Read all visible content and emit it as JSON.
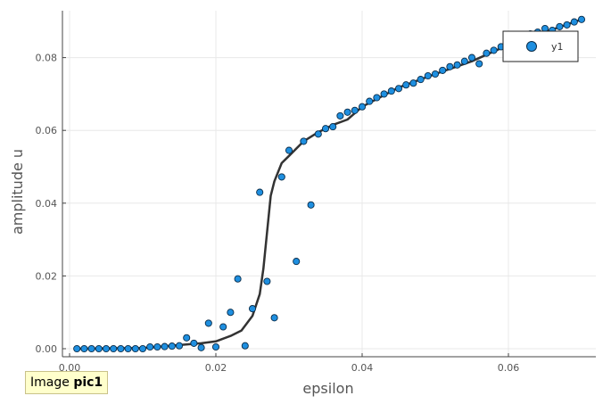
{
  "colors": {
    "marker_fill": "#1e8fe0",
    "marker_stroke": "#0b2d4a",
    "line": "#333333",
    "grid": "#e8e8e8",
    "axis": "#444444"
  },
  "chart_data": {
    "type": "scatter",
    "xlabel": "epsilon",
    "ylabel": "amplitude u",
    "xlim": [
      -0.001,
      0.0715
    ],
    "ylim": [
      -0.0025,
      0.093
    ],
    "xticks": [
      0.0,
      0.02,
      0.04,
      0.06
    ],
    "yticks": [
      0.0,
      0.02,
      0.04,
      0.06,
      0.08
    ],
    "xtick_labels": [
      "0.00",
      "0.02",
      "0.04",
      "0.06"
    ],
    "ytick_labels": [
      "0.00",
      "0.02",
      "0.04",
      "0.06",
      "0.08"
    ],
    "grid": true,
    "legend": {
      "position": "top-right",
      "entries": [
        "y1"
      ]
    },
    "series": [
      {
        "name": "y1",
        "kind": "scatter",
        "points": [
          [
            0.001,
            0.0
          ],
          [
            0.002,
            0.0
          ],
          [
            0.003,
            0.0
          ],
          [
            0.004,
            0.0
          ],
          [
            0.005,
            0.0
          ],
          [
            0.006,
            0.0
          ],
          [
            0.007,
            0.0
          ],
          [
            0.008,
            0.0
          ],
          [
            0.009,
            0.0
          ],
          [
            0.01,
            0.0
          ],
          [
            0.011,
            0.0005
          ],
          [
            0.012,
            0.0005
          ],
          [
            0.013,
            0.0006
          ],
          [
            0.014,
            0.0007
          ],
          [
            0.015,
            0.0008
          ],
          [
            0.016,
            0.003
          ],
          [
            0.017,
            0.0015
          ],
          [
            0.018,
            0.0003
          ],
          [
            0.019,
            0.007
          ],
          [
            0.02,
            0.0005
          ],
          [
            0.021,
            0.006
          ],
          [
            0.022,
            0.01
          ],
          [
            0.023,
            0.0192
          ],
          [
            0.024,
            0.0008
          ],
          [
            0.025,
            0.011
          ],
          [
            0.026,
            0.043
          ],
          [
            0.027,
            0.0185
          ],
          [
            0.028,
            0.0085
          ],
          [
            0.029,
            0.0472
          ],
          [
            0.03,
            0.0545
          ],
          [
            0.031,
            0.024
          ],
          [
            0.032,
            0.057
          ],
          [
            0.033,
            0.0395
          ],
          [
            0.034,
            0.059
          ],
          [
            0.035,
            0.0605
          ],
          [
            0.036,
            0.061
          ],
          [
            0.037,
            0.064
          ],
          [
            0.038,
            0.065
          ],
          [
            0.039,
            0.0655
          ],
          [
            0.04,
            0.0665
          ],
          [
            0.041,
            0.068
          ],
          [
            0.042,
            0.069
          ],
          [
            0.043,
            0.07
          ],
          [
            0.044,
            0.0708
          ],
          [
            0.045,
            0.0715
          ],
          [
            0.046,
            0.0725
          ],
          [
            0.047,
            0.073
          ],
          [
            0.048,
            0.074
          ],
          [
            0.049,
            0.075
          ],
          [
            0.05,
            0.0755
          ],
          [
            0.051,
            0.0765
          ],
          [
            0.052,
            0.0775
          ],
          [
            0.053,
            0.078
          ],
          [
            0.054,
            0.079
          ],
          [
            0.055,
            0.08
          ],
          [
            0.056,
            0.0783
          ],
          [
            0.057,
            0.0812
          ],
          [
            0.058,
            0.082
          ],
          [
            0.059,
            0.083
          ],
          [
            0.06,
            0.084
          ],
          [
            0.061,
            0.085
          ],
          [
            0.062,
            0.086
          ],
          [
            0.063,
            0.0865
          ],
          [
            0.064,
            0.087
          ],
          [
            0.065,
            0.088
          ],
          [
            0.066,
            0.0875
          ],
          [
            0.067,
            0.0885
          ],
          [
            0.068,
            0.089
          ],
          [
            0.069,
            0.0898
          ],
          [
            0.07,
            0.0905
          ]
        ]
      },
      {
        "kind": "line",
        "points": [
          [
            0.001,
            0.0
          ],
          [
            0.01,
            0.0002
          ],
          [
            0.015,
            0.001
          ],
          [
            0.018,
            0.0015
          ],
          [
            0.02,
            0.002
          ],
          [
            0.022,
            0.0035
          ],
          [
            0.0235,
            0.005
          ],
          [
            0.025,
            0.009
          ],
          [
            0.026,
            0.015
          ],
          [
            0.0265,
            0.022
          ],
          [
            0.027,
            0.032
          ],
          [
            0.0275,
            0.042
          ],
          [
            0.028,
            0.046
          ],
          [
            0.029,
            0.051
          ],
          [
            0.03,
            0.053
          ],
          [
            0.032,
            0.057
          ],
          [
            0.034,
            0.0595
          ],
          [
            0.036,
            0.0615
          ],
          [
            0.038,
            0.063
          ],
          [
            0.04,
            0.0665
          ],
          [
            0.045,
            0.0718
          ],
          [
            0.05,
            0.0755
          ],
          [
            0.055,
            0.079
          ],
          [
            0.06,
            0.0835
          ],
          [
            0.065,
            0.087
          ],
          [
            0.07,
            0.0905
          ]
        ]
      }
    ]
  },
  "overlay_label": {
    "prefix": "Image",
    "name": "pic1"
  }
}
